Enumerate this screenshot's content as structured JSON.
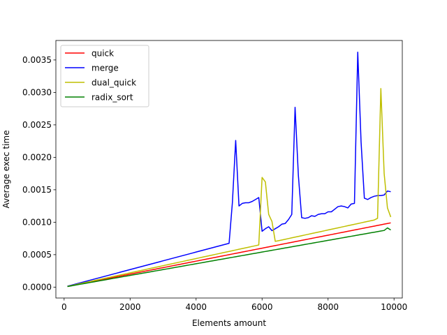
{
  "chart_data": {
    "type": "line",
    "title": "",
    "xlabel": "Elements amount",
    "ylabel": "Average exec time",
    "xlim": [
      -250,
      10250
    ],
    "ylim": [
      -0.000168,
      0.0038
    ],
    "xticks": [
      0,
      2000,
      4000,
      6000,
      8000,
      10000
    ],
    "xtick_labels": [
      "0",
      "2000",
      "4000",
      "6000",
      "8000",
      "10000"
    ],
    "yticks": [
      0.0,
      0.0005,
      0.001,
      0.0015,
      0.002,
      0.0025,
      0.003,
      0.0035
    ],
    "ytick_labels": [
      "0.0000",
      "0.0005",
      "0.0010",
      "0.0015",
      "0.0020",
      "0.0025",
      "0.0030",
      "0.0035"
    ],
    "grid": false,
    "legend": "top-left",
    "x": [
      100,
      200,
      300,
      400,
      500,
      600,
      700,
      800,
      900,
      1000,
      1100,
      1200,
      1300,
      1400,
      1500,
      1600,
      1700,
      1800,
      1900,
      2000,
      2100,
      2200,
      2300,
      2400,
      2500,
      2600,
      2700,
      2800,
      2900,
      3000,
      3100,
      3200,
      3300,
      3400,
      3500,
      3600,
      3700,
      3800,
      3900,
      4000,
      4100,
      4200,
      4300,
      4400,
      4500,
      4600,
      4700,
      4800,
      4900,
      5000,
      5100,
      5200,
      5300,
      5400,
      5500,
      5600,
      5700,
      5800,
      5900,
      6000,
      6100,
      6200,
      6300,
      6400,
      6500,
      6600,
      6700,
      6800,
      6900,
      7000,
      7100,
      7200,
      7300,
      7400,
      7500,
      7600,
      7700,
      7800,
      7900,
      8000,
      8100,
      8200,
      8300,
      8400,
      8500,
      8600,
      8700,
      8800,
      8900,
      9000,
      9100,
      9200,
      9300,
      9400,
      9500,
      9600,
      9700,
      9800,
      9900
    ],
    "series": [
      {
        "name": "quick",
        "color": "#ff0000",
        "values": [
          1e-05,
          2e-05,
          3e-05,
          4e-05,
          5e-05,
          6e-05,
          7e-05,
          8e-05,
          9e-05,
          0.0001,
          0.00011,
          0.00012,
          0.00013,
          0.00014,
          0.00015,
          0.00016,
          0.00017,
          0.00018,
          0.00019,
          0.0002,
          0.00021,
          0.00022,
          0.00023,
          0.00024,
          0.00025,
          0.00026,
          0.00027,
          0.00028,
          0.00029,
          0.0003,
          0.00031,
          0.00032,
          0.00033,
          0.00034,
          0.00035,
          0.00036,
          0.00037,
          0.00038,
          0.00039,
          0.0004,
          0.00041,
          0.00042,
          0.00043,
          0.00044,
          0.00045,
          0.00046,
          0.00047,
          0.00048,
          0.00049,
          0.0005,
          0.00051,
          0.00052,
          0.00053,
          0.00054,
          0.00055,
          0.00056,
          0.00057,
          0.00058,
          0.00059,
          0.0006,
          0.00061,
          0.00062,
          0.00063,
          0.00064,
          0.00065,
          0.00066,
          0.00067,
          0.00068,
          0.00069,
          0.0007,
          0.00071,
          0.00072,
          0.00073,
          0.00074,
          0.00075,
          0.00076,
          0.00077,
          0.00078,
          0.00079,
          0.0008,
          0.00081,
          0.00082,
          0.00083,
          0.00084,
          0.00085,
          0.00086,
          0.00087,
          0.00088,
          0.00089,
          0.0009,
          0.00091,
          0.00092,
          0.00093,
          0.00094,
          0.00095,
          0.00096,
          0.00097,
          0.00098,
          0.00099
        ]
      },
      {
        "name": "merge",
        "color": "#0000ff",
        "values": [
          1.35e-05,
          2.7e-05,
          4.05e-05,
          5.4e-05,
          6.75e-05,
          8.1e-05,
          9.45e-05,
          0.000108,
          0.0001215,
          0.000135,
          0.0001485,
          0.000162,
          0.0001755,
          0.000189,
          0.0002025,
          0.000216,
          0.0002295,
          0.000243,
          0.0002565,
          0.00027,
          0.0002835,
          0.000297,
          0.0003105,
          0.000324,
          0.0003375,
          0.000351,
          0.0003645,
          0.000378,
          0.0003915,
          0.000405,
          0.0004185,
          0.000432,
          0.0004455,
          0.000459,
          0.0004725,
          0.000486,
          0.0004995,
          0.000513,
          0.0005265,
          0.00054,
          0.0005535,
          0.000567,
          0.0005805,
          0.000594,
          0.0006075,
          0.000621,
          0.0006345,
          0.000648,
          0.0006615,
          0.000675,
          0.0013,
          0.00226,
          0.00125,
          0.00129,
          0.0013,
          0.0013,
          0.00132,
          0.00135,
          0.00138,
          0.00086,
          0.0009,
          0.00093,
          0.00087,
          0.0009,
          0.00093,
          0.00097,
          0.00098,
          0.00104,
          0.00112,
          0.00277,
          0.00172,
          0.00107,
          0.00106,
          0.00107,
          0.0011,
          0.00109,
          0.00112,
          0.00113,
          0.00113,
          0.00116,
          0.00116,
          0.0012,
          0.00124,
          0.00125,
          0.00124,
          0.00122,
          0.00128,
          0.00129,
          0.00362,
          0.00224,
          0.00137,
          0.00135,
          0.00138,
          0.0014,
          0.00141,
          0.00141,
          0.00142,
          0.00148,
          0.00147
        ]
      },
      {
        "name": "dual_quick",
        "color": "#bfbf00",
        "values": [
          1.1e-05,
          2.2e-05,
          3.3e-05,
          4.4e-05,
          5.5e-05,
          6.6e-05,
          7.7e-05,
          8.8e-05,
          9.9e-05,
          0.00011,
          0.000121,
          0.000132,
          0.000143,
          0.000154,
          0.000165,
          0.000176,
          0.000187,
          0.000198,
          0.000209,
          0.00022,
          0.000231,
          0.000242,
          0.000253,
          0.000264,
          0.000275,
          0.000286,
          0.000297,
          0.000308,
          0.000319,
          0.00033,
          0.000341,
          0.000352,
          0.000363,
          0.000374,
          0.000385,
          0.000396,
          0.000407,
          0.000418,
          0.000429,
          0.00044,
          0.000451,
          0.000462,
          0.000473,
          0.000484,
          0.000495,
          0.000506,
          0.000517,
          0.000528,
          0.000539,
          0.00055,
          0.000561,
          0.000572,
          0.000583,
          0.000594,
          0.000605,
          0.000616,
          0.000627,
          0.000638,
          0.000649,
          0.00169,
          0.00162,
          0.00112,
          0.00101,
          0.000705,
          0.000715,
          0.000726,
          0.000737,
          0.000748,
          0.000759,
          0.00077,
          0.000781,
          0.000792,
          0.000803,
          0.000814,
          0.000825,
          0.000836,
          0.000847,
          0.000858,
          0.000869,
          0.00088,
          0.000891,
          0.000902,
          0.000913,
          0.000924,
          0.000935,
          0.000946,
          0.000957,
          0.000968,
          0.000979,
          0.00099,
          0.001001,
          0.001012,
          0.001023,
          0.001034,
          0.00106,
          0.00306,
          0.00175,
          0.00122,
          0.00108
        ]
      },
      {
        "name": "radix_sort",
        "color": "#008000",
        "values": [
          9e-06,
          1.8e-05,
          2.7e-05,
          3.6e-05,
          4.5e-05,
          5.4e-05,
          6.3e-05,
          7.2e-05,
          8.1e-05,
          9e-05,
          9.9e-05,
          0.000108,
          0.000117,
          0.000126,
          0.000135,
          0.000144,
          0.000153,
          0.000162,
          0.000171,
          0.00018,
          0.000189,
          0.000198,
          0.000207,
          0.000216,
          0.000225,
          0.000234,
          0.000243,
          0.000252,
          0.000261,
          0.00027,
          0.000279,
          0.000288,
          0.000297,
          0.000306,
          0.000315,
          0.000324,
          0.000333,
          0.000342,
          0.000351,
          0.00036,
          0.000369,
          0.000378,
          0.000387,
          0.000396,
          0.000405,
          0.000414,
          0.000423,
          0.000432,
          0.000441,
          0.00045,
          0.000459,
          0.000468,
          0.000477,
          0.000486,
          0.000495,
          0.000504,
          0.000513,
          0.000522,
          0.000531,
          0.00054,
          0.000549,
          0.000558,
          0.000567,
          0.000576,
          0.000585,
          0.000594,
          0.000603,
          0.000612,
          0.000621,
          0.00063,
          0.000639,
          0.000648,
          0.000657,
          0.000666,
          0.000675,
          0.000684,
          0.000693,
          0.000702,
          0.000711,
          0.00072,
          0.000729,
          0.000738,
          0.000747,
          0.000756,
          0.000765,
          0.000774,
          0.000783,
          0.000792,
          0.000801,
          0.00081,
          0.000819,
          0.000828,
          0.000837,
          0.000846,
          0.000855,
          0.000864,
          0.000873,
          0.000912,
          0.00088
        ]
      }
    ]
  }
}
